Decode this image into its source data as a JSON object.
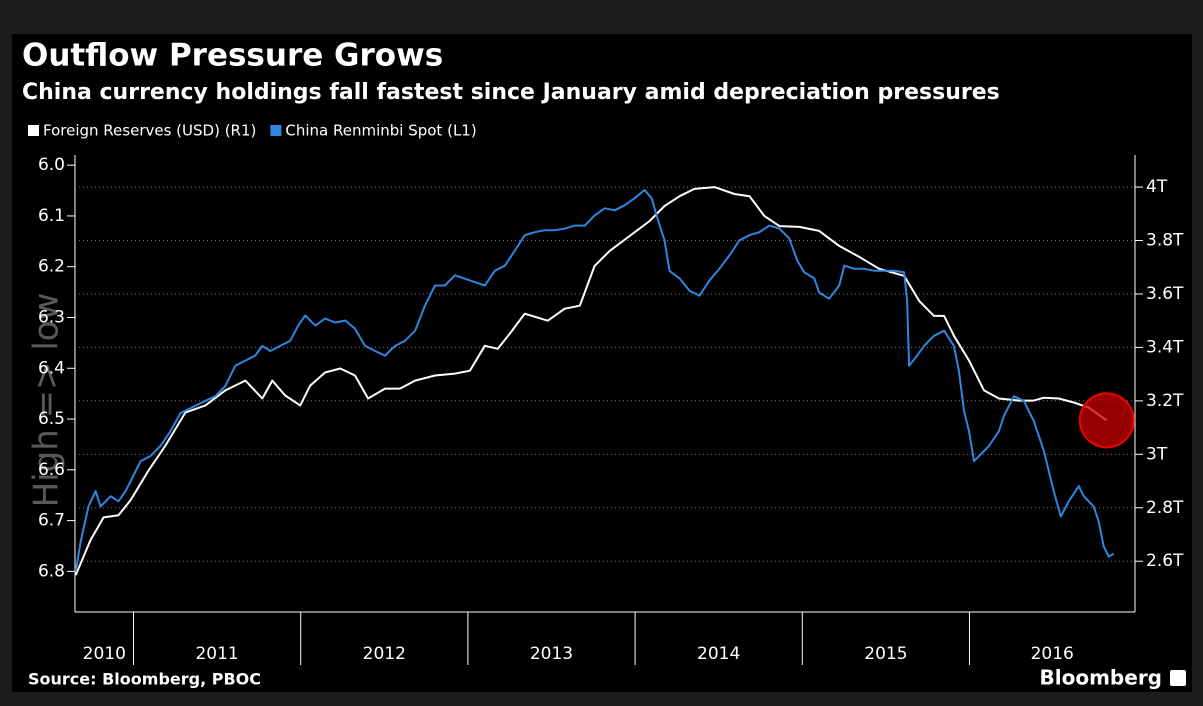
{
  "chart_data": {
    "type": "line",
    "title": "Outflow Pressure Grows",
    "subtitle": "China currency holdings fall fastest since January amid depreciation pressures",
    "source": "Source: Bloomberg, PBOC",
    "brand": "Bloomberg",
    "watermark": "High => low",
    "xlim": [
      2010.65,
      2016.99
    ],
    "xticks": [
      2010,
      2011,
      2012,
      2013,
      2014,
      2015,
      2016
    ],
    "ylim": [
      6.88,
      5.98
    ],
    "yticks": [
      {
        "value": 6,
        "label": "6.0"
      },
      6.1,
      6.2,
      6.3,
      6.4,
      6.5,
      6.6,
      6.7,
      6.8
    ],
    "y2lim": [
      2.41,
      4.12
    ],
    "y2ticks": [
      {
        "value": 4,
        "label": "4T"
      },
      {
        "value": 3.8,
        "label": "3.8T"
      },
      {
        "value": 3.6,
        "label": "3.6T"
      },
      {
        "value": 3.4,
        "label": "3.4T"
      },
      {
        "value": 3.2,
        "label": "3.2T"
      },
      {
        "value": 3,
        "label": "3T"
      },
      {
        "value": 2.8,
        "label": "2.8T"
      },
      {
        "value": 2.6,
        "label": "2.6T"
      }
    ],
    "grid": true,
    "series": [
      {
        "name": "Foreign Reserves (USD) (R1)",
        "color": "#ffffff",
        "axis": "y2",
        "x": [
          2010.654,
          2010.743,
          2010.821,
          2010.91,
          2010.982,
          2011.09,
          2011.191,
          2011.31,
          2011.43,
          2011.549,
          2011.669,
          2011.77,
          2011.83,
          2011.907,
          2011.997,
          2012.057,
          2012.146,
          2012.236,
          2012.325,
          2012.403,
          2012.504,
          2012.594,
          2012.684,
          2012.803,
          2012.922,
          2013.012,
          2013.101,
          2013.179,
          2013.263,
          2013.34,
          2013.478,
          2013.579,
          2013.669,
          2013.758,
          2013.848,
          2013.967,
          2014.087,
          2014.176,
          2014.266,
          2014.355,
          2014.475,
          2014.594,
          2014.684,
          2014.773,
          2014.863,
          2014.982,
          2015.101,
          2015.221,
          2015.34,
          2015.46,
          2015.609,
          2015.699,
          2015.788,
          2015.848,
          2015.907,
          2015.997,
          2016.087,
          2016.176,
          2016.296,
          2016.385,
          2016.445,
          2016.534,
          2016.624,
          2016.713,
          2016.821
        ],
        "values": [
          2.548,
          2.679,
          2.764,
          2.772,
          2.828,
          2.94,
          3.033,
          3.156,
          3.183,
          3.239,
          3.276,
          3.209,
          3.276,
          3.22,
          3.183,
          3.257,
          3.306,
          3.321,
          3.295,
          3.209,
          3.246,
          3.246,
          3.276,
          3.295,
          3.302,
          3.313,
          3.406,
          3.395,
          3.462,
          3.526,
          3.5,
          3.545,
          3.556,
          3.705,
          3.761,
          3.817,
          3.873,
          3.929,
          3.966,
          3.993,
          4.0,
          3.974,
          3.966,
          3.892,
          3.854,
          3.851,
          3.836,
          3.78,
          3.739,
          3.694,
          3.668,
          3.574,
          3.518,
          3.518,
          3.444,
          3.351,
          3.239,
          3.209,
          3.201,
          3.201,
          3.212,
          3.209,
          3.194,
          3.175,
          3.127
        ]
      },
      {
        "name": "China Renminbi Spot (L1)",
        "color": "#2f86e0",
        "axis": "y",
        "x": [
          2010.654,
          2010.684,
          2010.731,
          2010.773,
          2010.803,
          2010.863,
          2010.91,
          2010.952,
          2010.982,
          2011.042,
          2011.101,
          2011.161,
          2011.221,
          2011.281,
          2011.37,
          2011.43,
          2011.49,
          2011.549,
          2011.609,
          2011.669,
          2011.728,
          2011.77,
          2011.818,
          2011.878,
          2011.937,
          2011.985,
          2012.027,
          2012.087,
          2012.146,
          2012.206,
          2012.266,
          2012.325,
          2012.385,
          2012.445,
          2012.504,
          2012.564,
          2012.624,
          2012.684,
          2012.743,
          2012.803,
          2012.863,
          2012.922,
          2013.012,
          2013.101,
          2013.161,
          2013.221,
          2013.281,
          2013.34,
          2013.4,
          2013.46,
          2013.519,
          2013.579,
          2013.639,
          2013.699,
          2013.758,
          2013.818,
          2013.878,
          2013.937,
          2013.997,
          2014.057,
          2014.099,
          2014.134,
          2014.176,
          2014.206,
          2014.266,
          2014.325,
          2014.385,
          2014.445,
          2014.504,
          2014.564,
          2014.624,
          2014.684,
          2014.743,
          2014.803,
          2014.863,
          2014.922,
          2014.97,
          2015.012,
          2015.072,
          2015.101,
          2015.161,
          2015.221,
          2015.251,
          2015.31,
          2015.37,
          2015.43,
          2015.49,
          2015.549,
          2015.609,
          2015.627,
          2015.639,
          2015.687,
          2015.728,
          2015.788,
          2015.848,
          2015.907,
          2015.937,
          2015.967,
          2015.997,
          2016.027,
          2016.057,
          2016.116,
          2016.176,
          2016.206,
          2016.266,
          2016.325,
          2016.385,
          2016.445,
          2016.504,
          2016.546,
          2016.594,
          2016.654,
          2016.684,
          2016.743,
          2016.773,
          2016.803,
          2016.833,
          2016.863
        ],
        "values": [
          6.8,
          6.741,
          6.672,
          6.642,
          6.672,
          6.652,
          6.662,
          6.642,
          6.623,
          6.583,
          6.573,
          6.553,
          6.524,
          6.488,
          6.474,
          6.464,
          6.455,
          6.435,
          6.395,
          6.385,
          6.375,
          6.356,
          6.366,
          6.356,
          6.346,
          6.316,
          6.296,
          6.316,
          6.302,
          6.31,
          6.306,
          6.322,
          6.356,
          6.366,
          6.375,
          6.356,
          6.346,
          6.326,
          6.277,
          6.237,
          6.237,
          6.217,
          6.227,
          6.237,
          6.208,
          6.198,
          6.168,
          6.138,
          6.132,
          6.128,
          6.128,
          6.125,
          6.119,
          6.119,
          6.099,
          6.085,
          6.089,
          6.079,
          6.065,
          6.049,
          6.065,
          6.105,
          6.148,
          6.208,
          6.223,
          6.247,
          6.257,
          6.227,
          6.204,
          6.178,
          6.148,
          6.138,
          6.132,
          6.119,
          6.125,
          6.144,
          6.188,
          6.211,
          6.223,
          6.251,
          6.263,
          6.237,
          6.198,
          6.204,
          6.204,
          6.208,
          6.208,
          6.208,
          6.211,
          6.267,
          6.395,
          6.375,
          6.356,
          6.336,
          6.326,
          6.356,
          6.405,
          6.484,
          6.524,
          6.583,
          6.573,
          6.553,
          6.524,
          6.494,
          6.455,
          6.464,
          6.504,
          6.563,
          6.642,
          6.692,
          6.662,
          6.632,
          6.652,
          6.672,
          6.702,
          6.751,
          6.771,
          6.765
        ]
      }
    ]
  }
}
